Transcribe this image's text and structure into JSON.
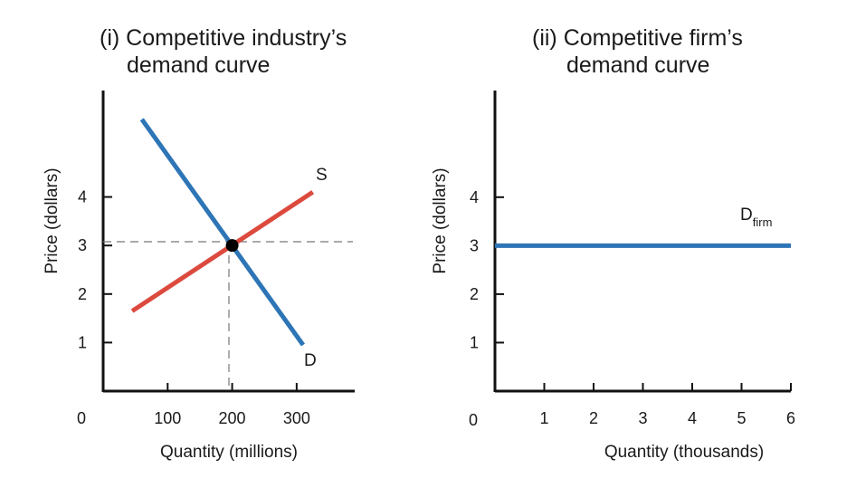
{
  "chart_data": [
    {
      "type": "line",
      "title_lines": [
        "(i)  Competitive industry’s",
        "demand curve"
      ],
      "xlabel": "Quantity (millions)",
      "ylabel": "Price (dollars)",
      "origin_label": "0",
      "xticks": [
        100,
        200,
        300
      ],
      "yticks": [
        1,
        2,
        3,
        4
      ],
      "xlim": [
        0,
        390
      ],
      "ylim": [
        0,
        6.1
      ],
      "series": [
        {
          "name": "D",
          "color": "#2e75b6",
          "x": [
            60,
            310
          ],
          "y": [
            5.6,
            0.95
          ]
        },
        {
          "name": "S",
          "color": "#dc4a3e",
          "x": [
            45,
            325
          ],
          "y": [
            1.65,
            4.1
          ]
        }
      ],
      "equilibrium": {
        "x": 200,
        "y": 3
      }
    },
    {
      "type": "line",
      "title_lines": [
        "(ii)  Competitive firm’s",
        "demand curve"
      ],
      "xlabel": "Quantity (thousands)",
      "ylabel": "Price (dollars)",
      "origin_label": "0",
      "xticks": [
        1,
        2,
        3,
        4,
        5,
        6
      ],
      "yticks": [
        1,
        2,
        3,
        4
      ],
      "xlim": [
        0,
        6
      ],
      "ylim": [
        0,
        6.2
      ],
      "series": [
        {
          "name": "D",
          "subscript": "firm",
          "color": "#2e75b6",
          "x": [
            0,
            6
          ],
          "y": [
            3,
            3
          ]
        }
      ]
    }
  ]
}
